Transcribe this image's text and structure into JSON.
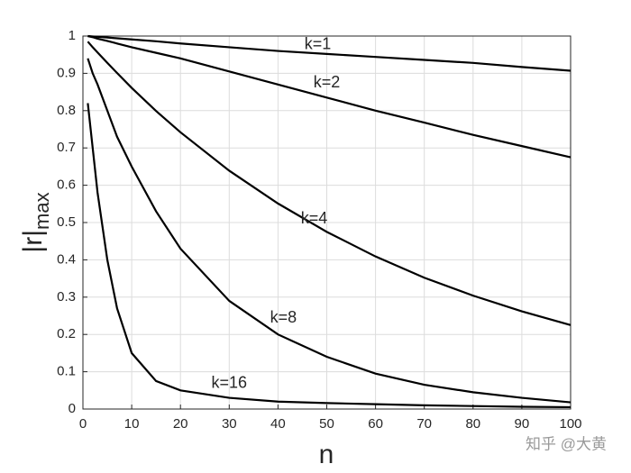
{
  "chart_data": {
    "type": "line",
    "xlabel": "n",
    "ylabel": "|r|",
    "ylabel_subscript": "max",
    "watermark": "知乎 @大黄",
    "x": [
      1,
      2,
      3,
      5,
      7,
      10,
      15,
      20,
      30,
      40,
      50,
      60,
      70,
      80,
      90,
      100
    ],
    "series": [
      {
        "name": "k=1",
        "color": "#000000",
        "values": [
          1,
          0.999,
          0.998,
          0.996,
          0.994,
          0.991,
          0.986,
          0.98,
          0.97,
          0.96,
          0.952,
          0.944,
          0.936,
          0.928,
          0.917,
          0.907
        ]
      },
      {
        "name": "k=2",
        "color": "#000000",
        "values": [
          1,
          0.997,
          0.993,
          0.987,
          0.98,
          0.97,
          0.955,
          0.94,
          0.905,
          0.87,
          0.835,
          0.8,
          0.768,
          0.735,
          0.705,
          0.675
        ]
      },
      {
        "name": "k=4",
        "color": "#000000",
        "values": [
          0.985,
          0.97,
          0.956,
          0.928,
          0.901,
          0.861,
          0.799,
          0.742,
          0.639,
          0.551,
          0.475,
          0.409,
          0.352,
          0.304,
          0.262,
          0.225
        ]
      },
      {
        "name": "k=8",
        "color": "#000000",
        "values": [
          0.94,
          0.9,
          0.87,
          0.8,
          0.73,
          0.65,
          0.53,
          0.43,
          0.29,
          0.2,
          0.14,
          0.095,
          0.065,
          0.045,
          0.03,
          0.018
        ]
      },
      {
        "name": "k=16",
        "color": "#000000",
        "values": [
          0.82,
          0.7,
          0.58,
          0.4,
          0.27,
          0.15,
          0.075,
          0.05,
          0.03,
          0.02,
          0.016,
          0.013,
          0.01,
          0.008,
          0.006,
          0.005
        ]
      }
    ],
    "xlim": [
      0,
      100
    ],
    "xticks": [
      0,
      10,
      20,
      30,
      40,
      50,
      60,
      70,
      80,
      90,
      100
    ],
    "ylim": [
      0,
      1
    ],
    "yticks": [
      0,
      0.1,
      0.2,
      0.3,
      0.4,
      0.5,
      0.6,
      0.7,
      0.8,
      0.9,
      1
    ],
    "grid": true
  }
}
